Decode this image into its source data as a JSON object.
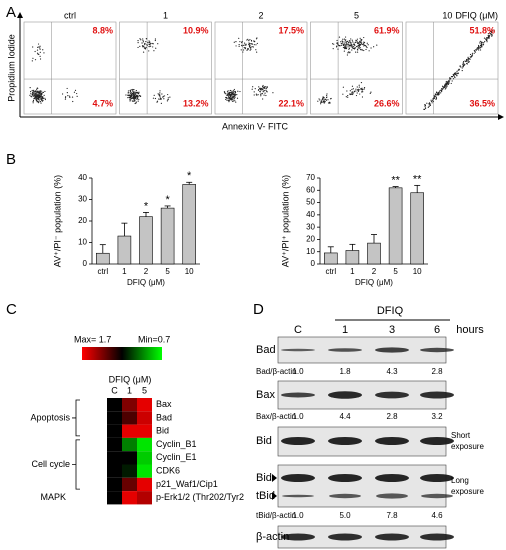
{
  "panel_a": {
    "label": "A",
    "y_label": "Propidium Iodide",
    "x_label": "Annexin V- FITC",
    "unit": "DFIQ (μM)",
    "plots": [
      {
        "label": "ctrl",
        "upper": "8.8%",
        "lower": "4.7%"
      },
      {
        "label": "1",
        "upper": "10.9%",
        "lower": "13.2%"
      },
      {
        "label": "2",
        "upper": "17.5%",
        "lower": "22.1%"
      },
      {
        "label": "5",
        "upper": "61.9%",
        "lower": "26.6%"
      },
      {
        "label": "10",
        "upper": "51.8%",
        "lower": "36.5%"
      }
    ]
  },
  "panel_b": {
    "label": "B"
  },
  "chart_data": [
    {
      "type": "bar",
      "y_label": "AV⁺/PI⁻ population (%)",
      "x_label": "DFIQ (μM)",
      "categories": [
        "ctrl",
        "1",
        "2",
        "5",
        "10"
      ],
      "values": [
        5,
        13,
        22,
        26,
        37
      ],
      "errors": [
        4,
        6,
        2,
        1,
        1
      ],
      "annotations": [
        null,
        null,
        "*",
        "*",
        "*"
      ],
      "color": "#c4c4c4",
      "ylim": [
        0,
        40
      ],
      "yticks": [
        0,
        10,
        20,
        30,
        40
      ]
    },
    {
      "type": "bar",
      "y_label": "AV⁺/PI⁺ population (%)",
      "x_label": "DFIQ (μM)",
      "categories": [
        "ctrl",
        "1",
        "2",
        "5",
        "10"
      ],
      "values": [
        9,
        11,
        17,
        62,
        58
      ],
      "errors": [
        5,
        5,
        7,
        1,
        6
      ],
      "annotations": [
        null,
        null,
        null,
        "**",
        "**"
      ],
      "color": "#c4c4c4",
      "ylim": [
        0,
        70
      ],
      "yticks": [
        0,
        10,
        20,
        30,
        40,
        50,
        60,
        70
      ]
    }
  ],
  "panel_c": {
    "label": "C",
    "scale_max": {
      "value": 1.7,
      "label": "Max= 1.7"
    },
    "scale_min": {
      "value": 0.7,
      "label": "Min=0.7"
    },
    "header": "DFIQ (μM)",
    "columns": [
      "C",
      "1",
      "5"
    ],
    "rows": [
      {
        "name": "Bax",
        "values": [
          1.2,
          1.45,
          1.65
        ]
      },
      {
        "name": "Bad",
        "values": [
          1.2,
          1.35,
          1.6
        ]
      },
      {
        "name": "Bid",
        "values": [
          1.2,
          1.65,
          1.65
        ]
      },
      {
        "name": "Cyclin_B1",
        "values": [
          1.2,
          0.95,
          0.75
        ]
      },
      {
        "name": "Cyclin_E1",
        "values": [
          1.2,
          1.2,
          0.8
        ]
      },
      {
        "name": "CDK6",
        "values": [
          1.2,
          1.15,
          0.75
        ]
      },
      {
        "name": "p21_Waf1/Cip1",
        "values": [
          1.2,
          1.4,
          1.65
        ]
      },
      {
        "name": "p-Erk1/2 (Thr202/Tyr2",
        "values": [
          1.2,
          1.65,
          1.55
        ]
      }
    ],
    "groups": [
      "Apoptosis",
      "Cell cycle",
      "MAPK"
    ]
  },
  "panel_d": {
    "label": "D",
    "header": "DFIQ",
    "lanes": [
      "C",
      "1",
      "3",
      "6"
    ],
    "unit": "hours",
    "bad": "Bad",
    "bad_ratio_label": "Bad/β-actin",
    "bad_ratios": [
      "1.0",
      "1.8",
      "4.3",
      "2.8"
    ],
    "bax": "Bax",
    "bax_ratio_label": "Bax/β-actin",
    "bax_ratios": [
      "1.0",
      "4.4",
      "2.8",
      "3.2"
    ],
    "bid_short": "Bid",
    "short_note": [
      "Short",
      "exposure"
    ],
    "bid_long": "Bid",
    "tbid": "tBid",
    "long_note": [
      "Long",
      "exposure"
    ],
    "tbid_ratio_label": "tBid/β-actin",
    "tbid_ratios": [
      "1.0",
      "5.0",
      "7.8",
      "4.6"
    ],
    "actin": "β-actin"
  }
}
